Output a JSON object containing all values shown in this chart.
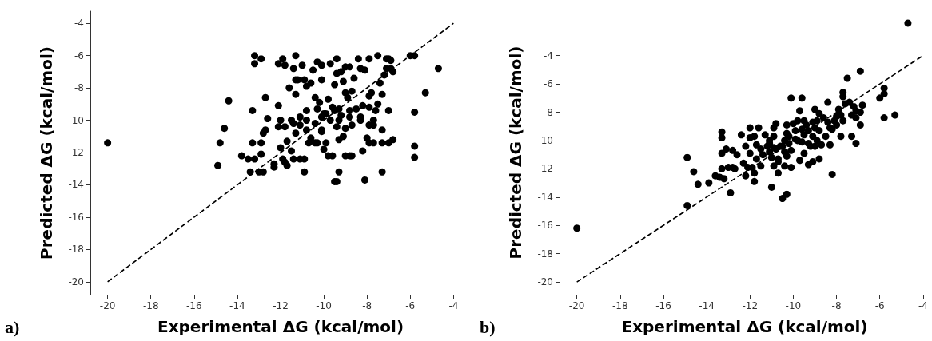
{
  "chart_data": [
    {
      "type": "scatter",
      "xlabel": "Experimental ΔG (kcal/mol)",
      "ylabel": "Predicted ΔG (kcal/mol)",
      "annotations": [
        "a)"
      ],
      "xlim": [
        -20.8,
        -3.2
      ],
      "ylim": [
        -20.8,
        -3.25
      ],
      "xticks": [
        -20,
        -18,
        -16,
        -14,
        -12,
        -10,
        -8,
        -6,
        -4
      ],
      "yticks": [
        -20,
        -18,
        -16,
        -14,
        -12,
        -10,
        -8,
        -6,
        -4
      ],
      "grid": false,
      "series": [
        {
          "type": "scatter",
          "color": "#000000",
          "marker": "circle",
          "x": [
            -20,
            -14.9,
            -14.8,
            -14.6,
            -14.4,
            -13.8,
            -13.5,
            -13.4,
            -13.3,
            -13.2,
            -13.2,
            -13.3,
            -13.2,
            -12.9,
            -12.9,
            -13,
            -12.9,
            -12.8,
            -12.8,
            -12.7,
            -12.7,
            -12.6,
            -12.3,
            -12.3,
            -12.1,
            -12.1,
            -11.9,
            -11.8,
            -12.1,
            -12,
            -11.8,
            -12,
            -11.9,
            -11.8,
            -11.7,
            -11.7,
            -11.6,
            -11.5,
            -11.5,
            -11.4,
            -11.4,
            -11.3,
            -11.4,
            -11.3,
            -11.3,
            -11.2,
            -11.3,
            -11.1,
            -11.1,
            -11,
            -11.1,
            -10.9,
            -10.9,
            -10.9,
            -10.8,
            -10.8,
            -10.8,
            -10.8,
            -10.7,
            -10.6,
            -10.6,
            -10.5,
            -10.4,
            -10.4,
            -10.4,
            -10.3,
            -10.3,
            -10.3,
            -10.2,
            -10.1,
            -10.1,
            -10.1,
            -10.1,
            -10,
            -10.1,
            -10,
            -9.9,
            -9.9,
            -9.8,
            -9.8,
            -9.7,
            -9.7,
            -9.6,
            -9.6,
            -9.5,
            -9.5,
            -9.4,
            -9.5,
            -9.4,
            -9.4,
            -9.3,
            -9.4,
            -9.3,
            -9.3,
            -9.3,
            -9.2,
            -9.2,
            -9.1,
            -9.1,
            -9,
            -9,
            -9,
            -9,
            -8.9,
            -8.8,
            -8.8,
            -8.8,
            -8.7,
            -8.7,
            -8.8,
            -8.7,
            -8.6,
            -8.5,
            -8.4,
            -8.3,
            -8.3,
            -8.3,
            -8.2,
            -8.2,
            -8.1,
            -8.1,
            -8,
            -7.9,
            -7.9,
            -7.9,
            -7.9,
            -7.9,
            -7.8,
            -7.7,
            -7.7,
            -7.7,
            -7.6,
            -7.5,
            -7.5,
            -7.4,
            -7.3,
            -7.3,
            -7.3,
            -7.3,
            -7.2,
            -7.1,
            -7.1,
            -7,
            -7,
            -7,
            -6.9,
            -6.9,
            -6.8,
            -6.8,
            -6,
            -5.8,
            -5.8,
            -5.8,
            -5.8,
            -5.3,
            -4.7
          ],
          "values": [
            -11.4,
            -12.8,
            -11.4,
            -10.5,
            -8.8,
            -12.2,
            -12.4,
            -13.2,
            -9.4,
            -6,
            -6.5,
            -11.4,
            -12.4,
            -6.2,
            -12.1,
            -13.2,
            -11.4,
            -13.2,
            -10.8,
            -10.6,
            -8.6,
            -9.9,
            -12.7,
            -12.9,
            -9.1,
            -6.5,
            -6.2,
            -6.6,
            -10.4,
            -10,
            -10.4,
            -11.7,
            -12.4,
            -12.6,
            -12.8,
            -11.3,
            -8,
            -11.9,
            -10,
            -12.4,
            -10.2,
            -6,
            -6.8,
            -10.8,
            -7.5,
            -7.5,
            -8.4,
            -9.8,
            -10.3,
            -6.6,
            -12.4,
            -12.4,
            -13.2,
            -7.5,
            -9.4,
            -10,
            -10.6,
            -7.9,
            -11.4,
            -7.7,
            -11.1,
            -6.9,
            -11.4,
            -8.6,
            -10.2,
            -6.4,
            -11.4,
            -9.3,
            -8.9,
            -7.5,
            -10.6,
            -9.8,
            -6.6,
            -9.6,
            -10.7,
            -11.8,
            -9.6,
            -11.4,
            -8.7,
            -12.2,
            -6.5,
            -10,
            -9.2,
            -12.2,
            -9.4,
            -7.8,
            -6.2,
            -13.8,
            -13.8,
            -7.1,
            -10,
            -10.4,
            -11.2,
            -13.2,
            -9.3,
            -7,
            -9.7,
            -11,
            -7.6,
            -12.2,
            -6.7,
            -8.3,
            -10.5,
            -8.6,
            -6.7,
            -12.2,
            -9.4,
            -8.2,
            -10.3,
            -9.8,
            -12.2,
            -7.4,
            -9.3,
            -6.2,
            -6.8,
            -9.8,
            -10,
            -9.1,
            -11.9,
            -13.7,
            -6.9,
            -11.1,
            -11.4,
            -6.2,
            -8.5,
            -9.2,
            -10.3,
            -8.3,
            -10,
            -11.4,
            -10.3,
            -9.4,
            -6,
            -9,
            -7.7,
            -13.2,
            -11.4,
            -8.4,
            -10.6,
            -7.2,
            -6.2,
            -6.8,
            -11.4,
            -9.4,
            -6.2,
            -6.8,
            -6.3,
            -7,
            -11.2,
            -6,
            -6,
            -9.5,
            -11.6,
            -12.3,
            -8.3,
            -6.8
          ]
        },
        {
          "type": "line",
          "color": "#000000",
          "marker": "none",
          "line_style": "dashed",
          "x": [
            -20,
            -4
          ],
          "values": [
            -20,
            -4
          ]
        }
      ]
    },
    {
      "type": "scatter",
      "xlabel": "Experimental ΔG (kcal/mol)",
      "ylabel": "Predicted ΔG (kcal/mol)",
      "annotations": [
        "b)"
      ],
      "xlim": [
        -20.8,
        -3.7
      ],
      "ylim": [
        -20.9,
        -0.8
      ],
      "xticks": [
        -20,
        -18,
        -16,
        -14,
        -12,
        -10,
        -8,
        -6,
        -4
      ],
      "yticks": [
        -20,
        -18,
        -16,
        -14,
        -12,
        -10,
        -8,
        -6,
        -4
      ],
      "grid": false,
      "series": [
        {
          "type": "scatter",
          "color": "#000000",
          "marker": "circle",
          "x": [
            -20,
            -14.9,
            -14.9,
            -14.6,
            -14.4,
            -13.9,
            -13.6,
            -13.4,
            -13.3,
            -13.3,
            -13.3,
            -13.3,
            -13.2,
            -13.1,
            -13,
            -12.9,
            -12.8,
            -12.8,
            -12.7,
            -12.6,
            -12.4,
            -12.3,
            -12.2,
            -12.2,
            -12.1,
            -12,
            -12,
            -12,
            -11.9,
            -11.8,
            -11.8,
            -11.8,
            -11.7,
            -11.7,
            -11.6,
            -11.5,
            -11.5,
            -11.4,
            -11.3,
            -11.2,
            -11.1,
            -11.1,
            -11.1,
            -11,
            -11,
            -10.9,
            -10.9,
            -10.9,
            -10.9,
            -10.8,
            -10.8,
            -10.7,
            -10.7,
            -10.7,
            -10.6,
            -10.5,
            -10.5,
            -10.4,
            -10.4,
            -10.4,
            -10.3,
            -10.3,
            -10.3,
            -10.3,
            -10.2,
            -10.2,
            -10.1,
            -10.1,
            -10.1,
            -10,
            -9.9,
            -9.9,
            -9.8,
            -9.8,
            -9.7,
            -9.7,
            -9.6,
            -9.6,
            -9.6,
            -9.5,
            -9.5,
            -9.5,
            -9.4,
            -9.3,
            -9.3,
            -9.3,
            -9.2,
            -9.1,
            -9.1,
            -9.1,
            -9,
            -9,
            -9,
            -8.9,
            -8.9,
            -8.8,
            -8.8,
            -8.8,
            -8.7,
            -8.6,
            -8.5,
            -8.4,
            -8.4,
            -8.3,
            -8.3,
            -8.2,
            -8.2,
            -8.1,
            -8,
            -8,
            -7.9,
            -7.8,
            -7.8,
            -7.7,
            -7.7,
            -7.7,
            -7.6,
            -7.5,
            -7.4,
            -7.3,
            -7.3,
            -7.2,
            -7.1,
            -7.1,
            -7.1,
            -6.9,
            -6.9,
            -6.9,
            -6.8,
            -6,
            -5.8,
            -5.8,
            -5.8,
            -5.3,
            -4.7
          ],
          "values": [
            -16.2,
            -11.2,
            -14.6,
            -12.2,
            -13.1,
            -13,
            -12.5,
            -12.6,
            -10.9,
            -12,
            -9.4,
            -9.8,
            -12.7,
            -10.6,
            -11.9,
            -13.7,
            -11.9,
            -10.7,
            -12,
            -11,
            -9.6,
            -11.6,
            -10.4,
            -12.5,
            -11.9,
            -9.1,
            -9.8,
            -10.9,
            -11.9,
            -12.3,
            -12.9,
            -9.7,
            -10.3,
            -11.3,
            -9.1,
            -10.6,
            -11.8,
            -11,
            -9.6,
            -10.4,
            -10.2,
            -10.8,
            -10,
            -11.2,
            -13.3,
            -10.5,
            -11.8,
            -9.1,
            -9.7,
            -8.8,
            -10.6,
            -11.3,
            -12.3,
            -11.5,
            -10.4,
            -14.1,
            -10.4,
            -11.8,
            -10,
            -10.8,
            -9.5,
            -11.1,
            -13.8,
            -8.9,
            -10.2,
            -9.7,
            -7,
            -11.9,
            -10.7,
            -8.8,
            -9.9,
            -9.3,
            -8.6,
            -10,
            -11.4,
            -7.9,
            -9.2,
            -7,
            -10.1,
            -8.6,
            -9.6,
            -10.9,
            -8.9,
            -10.2,
            -11.7,
            -9.3,
            -10.4,
            -8.7,
            -11.5,
            -9.7,
            -7.8,
            -10.4,
            -9.1,
            -8.6,
            -10,
            -11.3,
            -9.3,
            -8.1,
            -10.3,
            -8.4,
            -9.7,
            -8.7,
            -7.3,
            -9.1,
            -10.3,
            -9.2,
            -12.4,
            -8.6,
            -8.3,
            -8.9,
            -7.8,
            -8.2,
            -9.7,
            -6.9,
            -6.6,
            -8.6,
            -7.4,
            -5.6,
            -7.3,
            -9.7,
            -8.2,
            -7.6,
            -10.2,
            -8.4,
            -7.9,
            -8,
            -5.1,
            -8.9,
            -7.5,
            -7,
            -6.3,
            -6.7,
            -8.4,
            -8.2,
            -1.7
          ]
        },
        {
          "type": "line",
          "color": "#000000",
          "marker": "none",
          "line_style": "dashed",
          "x": [
            -20,
            -4
          ],
          "values": [
            -20,
            -4
          ]
        }
      ]
    }
  ]
}
